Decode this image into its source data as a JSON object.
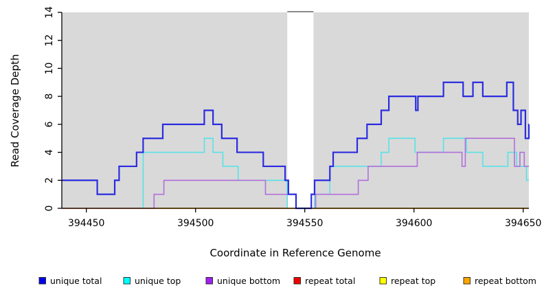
{
  "chart_data": {
    "type": "step-line",
    "title": "",
    "xlabel": "Coordinate in Reference Genome",
    "ylabel": "Read Coverage Depth",
    "xlim": [
      394438.8,
      394653
    ],
    "ylim": [
      0,
      14
    ],
    "x_ticks": [
      394450,
      394500,
      394550,
      394600,
      394650
    ],
    "y_ticks": [
      0,
      2,
      4,
      6,
      8,
      10,
      12,
      14
    ],
    "grid": false,
    "legend_position": "bottom",
    "plot_bg_color": "#D9D9D9",
    "background_regions": [
      {
        "x_start": 394438.8,
        "x_end": 394542,
        "color": "#D9D9D9"
      },
      {
        "x_start": 394554,
        "x_end": 394653,
        "color": "#D9D9D9"
      }
    ],
    "gap_region": {
      "x_start": 394542,
      "x_end": 394554,
      "color": "#FFFFFF",
      "note": "white uncovered column",
      "cap_value": 14,
      "cap_color": "#8A8A8A"
    },
    "series": [
      {
        "name": "repeat bottom",
        "color": "#FFA500",
        "width": 1.8,
        "segments": [
          [
            [
              394438.8,
              0
            ],
            [
              394653,
              0
            ]
          ]
        ]
      },
      {
        "name": "repeat top",
        "color": "#FFFF00",
        "width": 1.4,
        "segments": []
      },
      {
        "name": "repeat total",
        "color": "#DB7093",
        "width": 1.4,
        "segments": [
          [
            [
              394438.8,
              0
            ],
            [
              394481,
              0
            ]
          ]
        ]
      },
      {
        "name": "unique top",
        "color": "#58E2E8",
        "width": 1.6,
        "segments": [
          [
            [
              394476,
              0
            ],
            [
              394476,
              4
            ],
            [
              394504,
              5
            ],
            [
              394508,
              4
            ],
            [
              394512.5,
              3
            ],
            [
              394519.5,
              2
            ],
            [
              394542,
              0
            ]
          ],
          [
            [
              394554.5,
              0
            ],
            [
              394554.5,
              1
            ],
            [
              394561.5,
              3
            ],
            [
              394585,
              4
            ],
            [
              394588.5,
              5
            ],
            [
              394600.5,
              4
            ],
            [
              394613.5,
              5
            ],
            [
              394624,
              4
            ],
            [
              394631.5,
              3
            ],
            [
              394643,
              4
            ],
            [
              394647,
              3
            ],
            [
              394651.5,
              2
            ],
            [
              394653,
              2
            ]
          ]
        ]
      },
      {
        "name": "unique bottom",
        "color": "#B26EDC",
        "width": 1.6,
        "segments": [
          [
            [
              394481,
              0
            ],
            [
              394481,
              1
            ],
            [
              394485.5,
              2
            ],
            [
              394532,
              1
            ],
            [
              394546,
              0
            ]
          ],
          [
            [
              394555,
              0
            ],
            [
              394555,
              1
            ],
            [
              394574.5,
              2
            ],
            [
              394579,
              3
            ],
            [
              394601.5,
              4
            ],
            [
              394622,
              3
            ],
            [
              394623.5,
              5
            ],
            [
              394646,
              3
            ],
            [
              394648.5,
              4
            ],
            [
              394650.5,
              3
            ],
            [
              394653,
              3
            ]
          ]
        ]
      },
      {
        "name": "unique total",
        "color": "#2B2BDF",
        "width": 2.2,
        "segments": [
          [
            [
              394438.8,
              2
            ],
            [
              394455,
              1
            ],
            [
              394463,
              2
            ],
            [
              394465,
              3
            ],
            [
              394473,
              4
            ],
            [
              394476,
              5
            ],
            [
              394485,
              6
            ],
            [
              394504,
              7
            ],
            [
              394508,
              6
            ],
            [
              394512,
              5
            ],
            [
              394519,
              4
            ],
            [
              394531,
              3
            ],
            [
              394541,
              2
            ],
            [
              394542.5,
              1
            ],
            [
              394546,
              0
            ],
            [
              394553,
              1
            ],
            [
              394554.5,
              2
            ],
            [
              394561.5,
              3
            ],
            [
              394563,
              4
            ],
            [
              394574,
              5
            ],
            [
              394578.5,
              6
            ],
            [
              394585,
              7
            ],
            [
              394588.5,
              8
            ],
            [
              394600.8,
              7
            ],
            [
              394601.8,
              8
            ],
            [
              394613.5,
              9
            ],
            [
              394622.5,
              8
            ],
            [
              394627,
              9
            ],
            [
              394631.5,
              8
            ],
            [
              394642.5,
              9
            ],
            [
              394645.5,
              7
            ],
            [
              394647.5,
              6
            ],
            [
              394649,
              7
            ],
            [
              394651,
              5
            ],
            [
              394652.6,
              6
            ],
            [
              394653,
              6
            ]
          ]
        ]
      }
    ]
  },
  "legend": {
    "items": [
      {
        "label": "unique total",
        "color": "#0000EE"
      },
      {
        "label": "unique top",
        "color": "#00FFFF"
      },
      {
        "label": "unique bottom",
        "color": "#A020F0"
      },
      {
        "label": "repeat total",
        "color": "#EE0000"
      },
      {
        "label": "repeat top",
        "color": "#FFFF00"
      },
      {
        "label": "repeat bottom",
        "color": "#FFA500"
      }
    ]
  },
  "axis_color": "#000000"
}
